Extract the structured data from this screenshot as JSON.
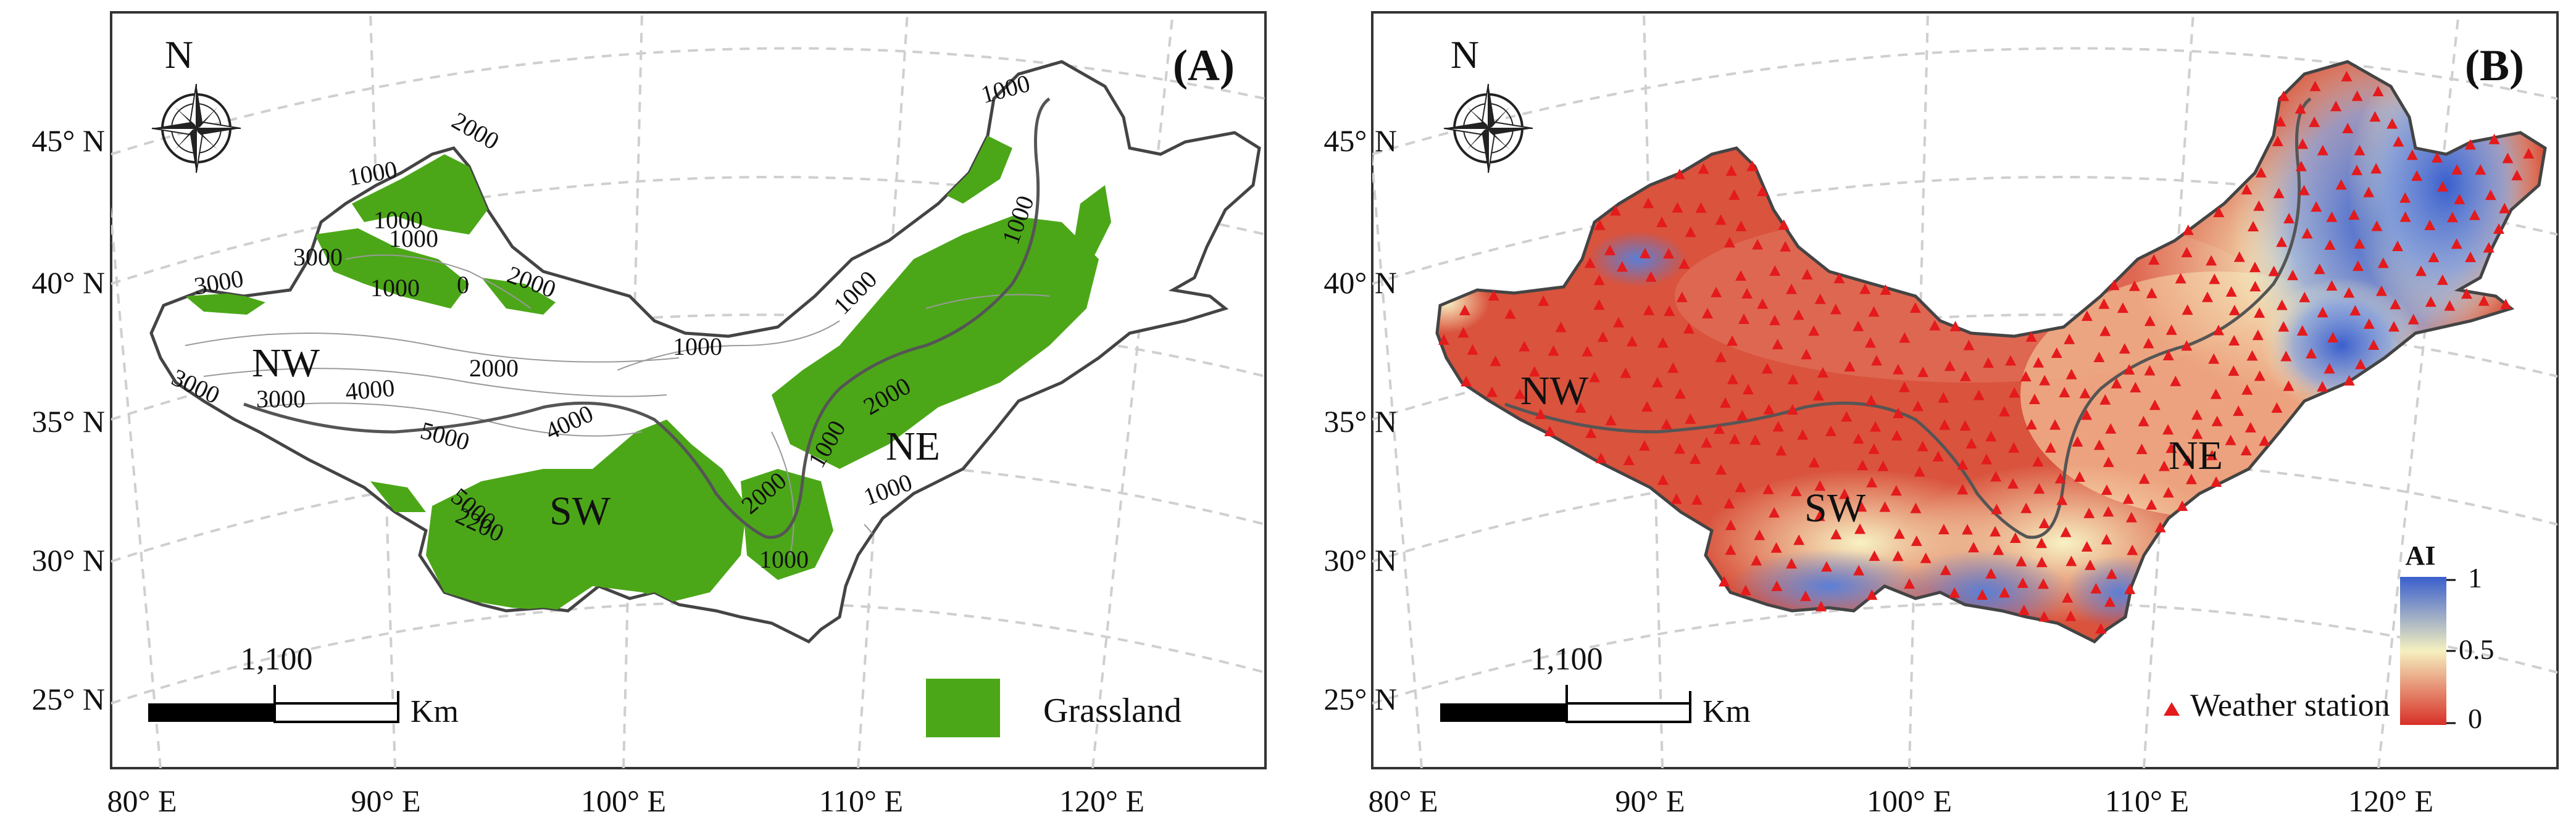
{
  "panels": [
    {
      "label": "(A)",
      "north": "N",
      "lat_labels": [
        "45° N",
        "40° N",
        "35° N",
        "30° N",
        "25° N"
      ],
      "lon_labels": [
        "80° E",
        "90° E",
        "100° E",
        "110° E",
        "120° E"
      ],
      "scale_value": "1,100",
      "scale_unit": "Km",
      "regions": [
        "NW",
        "SW",
        "NE"
      ],
      "legend_label": "Grassland",
      "legend_color": "#4ca718",
      "contours": [
        {
          "text": "2000"
        },
        {
          "text": "1000"
        },
        {
          "text": "1000"
        },
        {
          "text": "3000"
        },
        {
          "text": "3000"
        },
        {
          "text": "1000"
        },
        {
          "text": "2000"
        },
        {
          "text": "0"
        },
        {
          "text": "1000"
        },
        {
          "text": "3000"
        },
        {
          "text": "4000"
        },
        {
          "text": "2000"
        },
        {
          "text": "3000"
        },
        {
          "text": "5000"
        },
        {
          "text": "4000"
        },
        {
          "text": "5000"
        },
        {
          "text": "2200"
        },
        {
          "text": "1000"
        },
        {
          "text": "1000"
        },
        {
          "text": "1000"
        },
        {
          "text": "1000"
        },
        {
          "text": "2000"
        },
        {
          "text": "1000"
        },
        {
          "text": "1000"
        },
        {
          "text": "1000"
        },
        {
          "text": "2000"
        }
      ]
    },
    {
      "label": "(B)",
      "north": "N",
      "lat_labels": [
        "45° N",
        "40° N",
        "35° N",
        "30° N",
        "25° N"
      ],
      "lon_labels": [
        "80° E",
        "90° E",
        "100° E",
        "110° E",
        "120° E"
      ],
      "scale_value": "1,100",
      "scale_unit": "Km",
      "regions": [
        "NW",
        "SW",
        "NE"
      ],
      "legend_station": "Weather station",
      "station_color": "#e41a1c",
      "colorbar_title": "AI",
      "colorbar_ticks": [
        "1",
        "0.5",
        "0"
      ],
      "colorbar_colors": [
        "#3a5fcd",
        "#f5f0c0",
        "#d73027"
      ]
    }
  ]
}
